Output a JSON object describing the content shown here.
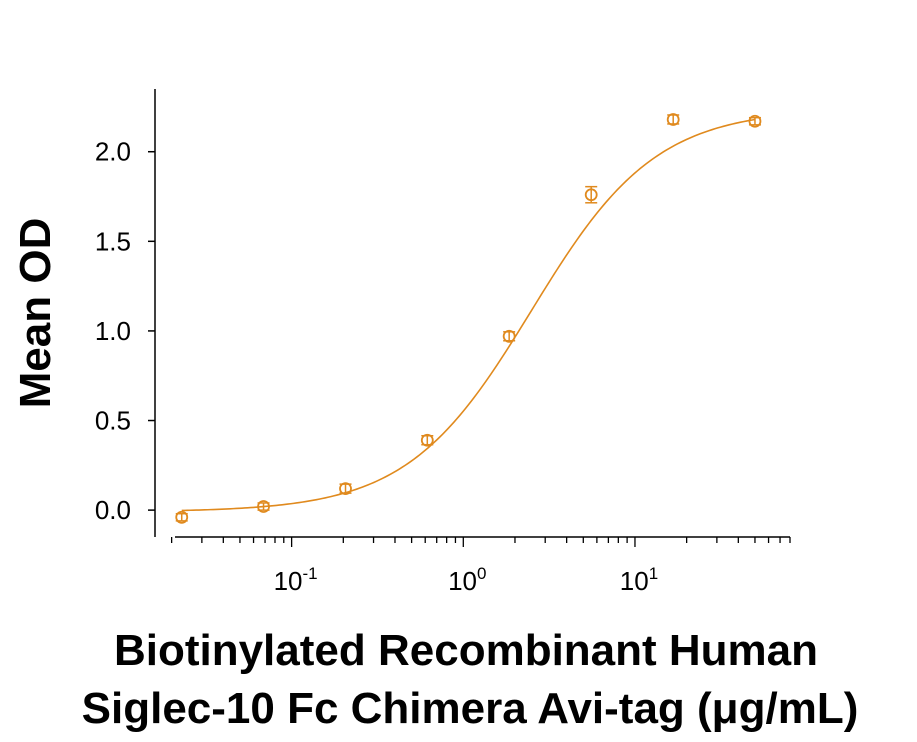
{
  "chart_data": {
    "type": "scatter",
    "x_scale": "log",
    "xlim": [
      0.016,
      80
    ],
    "ylim": [
      -0.15,
      2.35
    ],
    "ylabel": "Mean OD",
    "xlabel_line1": "Biotinylated Recombinant Human",
    "xlabel_line2": "Siglec-10 Fc Chimera Avi-tag (μg/mL)",
    "y_ticks": [
      0.0,
      0.5,
      1.0,
      1.5,
      2.0
    ],
    "y_tick_labels": [
      "0.0",
      "0.5",
      "1.0",
      "1.5",
      "2.0"
    ],
    "x_ticks": [
      0.1,
      1,
      10
    ],
    "x_tick_labels": [
      {
        "base": "10",
        "exp": "-1"
      },
      {
        "base": "10",
        "exp": "0"
      },
      {
        "base": "10",
        "exp": "1"
      }
    ],
    "series": [
      {
        "color": "#E08A1E",
        "points": [
          {
            "x": 0.0229,
            "y": -0.04,
            "err": 0.02
          },
          {
            "x": 0.0686,
            "y": 0.02,
            "err": 0.02
          },
          {
            "x": 0.206,
            "y": 0.12,
            "err": 0.025
          },
          {
            "x": 0.617,
            "y": 0.39,
            "err": 0.025
          },
          {
            "x": 1.85,
            "y": 0.97,
            "err": 0.025
          },
          {
            "x": 5.56,
            "y": 1.76,
            "err": 0.045
          },
          {
            "x": 16.7,
            "y": 2.18,
            "err": 0.025
          },
          {
            "x": 50.0,
            "y": 2.17,
            "err": 0.02
          }
        ],
        "fit": {
          "type": "4PL",
          "bottom": -0.01,
          "top": 2.24,
          "ec50": 2.5,
          "hill": 1.2
        }
      }
    ]
  }
}
